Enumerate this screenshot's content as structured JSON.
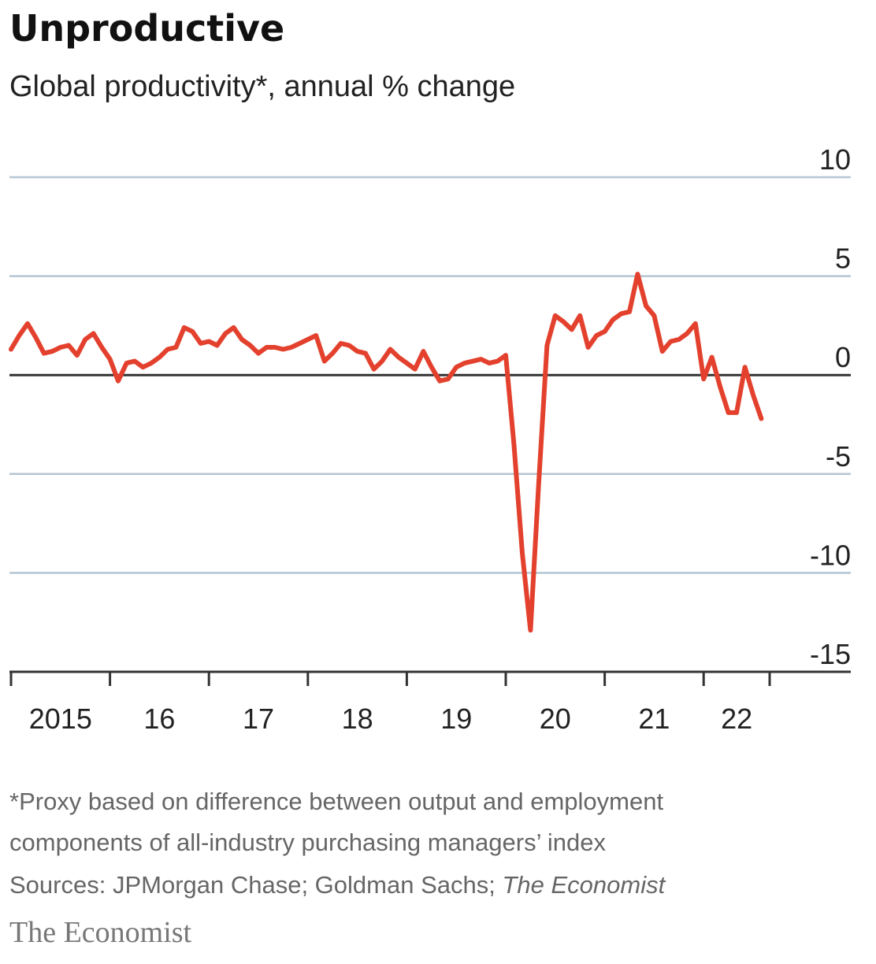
{
  "chart_data": {
    "type": "line",
    "title": "Unproductive",
    "subtitle": "Global productivity*, annual % change",
    "notes": [
      "*Proxy based on difference between output and employment",
      "components of all-industry purchasing managers’ index"
    ],
    "source": "Sources: JPMorgan Chase; Goldman Sachs; ",
    "source_italic": "The Economist",
    "brand": "The Economist",
    "x": [
      2015,
      2015.083,
      2015.167,
      2015.25,
      2015.333,
      2015.417,
      2015.5,
      2015.583,
      2015.667,
      2015.75,
      2015.833,
      2015.917,
      2016,
      2016.083,
      2016.167,
      2016.25,
      2016.333,
      2016.417,
      2016.5,
      2016.583,
      2016.667,
      2016.75,
      2016.833,
      2016.917,
      2017,
      2017.083,
      2017.167,
      2017.25,
      2017.333,
      2017.417,
      2017.5,
      2017.583,
      2017.667,
      2017.75,
      2017.833,
      2017.917,
      2018,
      2018.083,
      2018.167,
      2018.25,
      2018.333,
      2018.417,
      2018.5,
      2018.583,
      2018.667,
      2018.75,
      2018.833,
      2018.917,
      2019,
      2019.083,
      2019.167,
      2019.25,
      2019.333,
      2019.417,
      2019.5,
      2019.583,
      2019.667,
      2019.75,
      2019.833,
      2019.917,
      2020,
      2020.083,
      2020.167,
      2020.25,
      2020.333,
      2020.417,
      2020.5,
      2020.583,
      2020.667,
      2020.75,
      2020.833,
      2020.917,
      2021,
      2021.083,
      2021.167,
      2021.25,
      2021.333,
      2021.417,
      2021.5,
      2021.583,
      2021.667,
      2021.75,
      2021.833,
      2021.917,
      2022,
      2022.083,
      2022.167,
      2022.25,
      2022.333,
      2022.417,
      2022.5,
      2022.583
    ],
    "series": [
      {
        "color": "#e3412d",
        "values": [
          1.3,
          2.0,
          2.6,
          1.9,
          1.1,
          1.2,
          1.4,
          1.5,
          1.0,
          1.8,
          2.1,
          1.4,
          0.8,
          -0.3,
          0.6,
          0.7,
          0.4,
          0.6,
          0.9,
          1.3,
          1.4,
          2.4,
          2.2,
          1.6,
          1.7,
          1.5,
          2.1,
          2.4,
          1.8,
          1.5,
          1.1,
          1.4,
          1.4,
          1.3,
          1.4,
          1.6,
          1.8,
          2.0,
          0.7,
          1.1,
          1.6,
          1.5,
          1.2,
          1.1,
          0.3,
          0.7,
          1.3,
          0.9,
          0.6,
          0.3,
          1.2,
          0.4,
          -0.3,
          -0.2,
          0.4,
          0.6,
          0.7,
          0.8,
          0.6,
          0.7,
          1.0,
          -3.5,
          -9.0,
          -12.9,
          -5.5,
          1.5,
          3.0,
          2.7,
          2.3,
          3.0,
          1.4,
          2.0,
          2.2,
          2.8,
          3.1,
          3.2,
          5.1,
          3.5,
          3.0,
          1.2,
          1.7,
          1.8,
          2.1,
          2.6,
          -0.2,
          0.9,
          -0.6,
          -1.9,
          -1.9,
          0.4,
          -1.0,
          -2.2
        ]
      }
    ],
    "xlim": [
      2015,
      2022.667
    ],
    "xticks": [
      {
        "value": 2015,
        "label": "2015"
      },
      {
        "value": 2016,
        "label": "16"
      },
      {
        "value": 2017,
        "label": "17"
      },
      {
        "value": 2018,
        "label": "18"
      },
      {
        "value": 2019,
        "label": "19"
      },
      {
        "value": 2020,
        "label": "20"
      },
      {
        "value": 2021,
        "label": "21"
      },
      {
        "value": 2022,
        "label": "22"
      }
    ],
    "ylim": [
      -15,
      10
    ],
    "yticks": [
      -15,
      -10,
      -5,
      0,
      5,
      10
    ],
    "grid": true
  }
}
